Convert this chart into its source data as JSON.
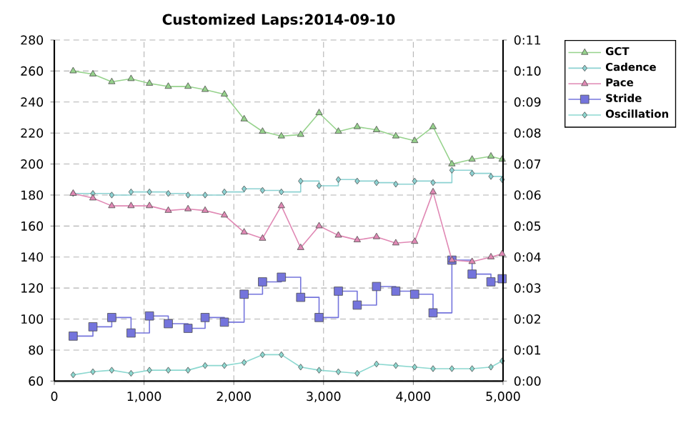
{
  "chart_data": {
    "type": "line",
    "title": "Customized Laps:2014-09-10",
    "x": [
      210,
      430,
      640,
      855,
      1060,
      1270,
      1490,
      1680,
      1895,
      2115,
      2320,
      2530,
      2745,
      2950,
      3165,
      3375,
      3590,
      3805,
      4015,
      4220,
      4430,
      4655,
      4865,
      4990
    ],
    "series": [
      {
        "name": "GCT",
        "color": "#96d28c",
        "marker": "triangle",
        "values": [
          260,
          258,
          253,
          255,
          252,
          250,
          250,
          248,
          245,
          229,
          221,
          218,
          219,
          233,
          221,
          224,
          222,
          218,
          215,
          224,
          200,
          203,
          205,
          203
        ]
      },
      {
        "name": "Cadence",
        "type": "step",
        "color": "#8cd2d2",
        "marker": "diamond",
        "values": [
          181,
          181,
          180,
          182,
          182,
          181,
          180,
          180,
          182,
          184,
          183,
          182,
          189,
          186,
          190,
          189,
          188,
          187,
          189,
          188,
          196,
          194,
          192,
          190
        ]
      },
      {
        "name": "Pace",
        "axis": "y2",
        "color": "#e088b4",
        "marker": "triangle",
        "values": [
          6.05,
          5.9,
          5.65,
          5.65,
          5.65,
          5.5,
          5.55,
          5.5,
          5.35,
          4.8,
          4.6,
          5.65,
          4.3,
          5.0,
          4.7,
          4.55,
          4.65,
          4.45,
          4.5,
          6.1,
          3.9,
          3.85,
          4.0,
          4.1
        ]
      },
      {
        "name": "Stride",
        "type": "step",
        "color": "#7474dc",
        "marker": "square",
        "values": [
          89,
          95,
          101,
          91,
          102,
          97,
          94,
          101,
          98,
          116,
          124,
          127,
          114,
          101,
          118,
          109,
          121,
          118,
          116,
          104,
          138,
          129,
          124,
          126
        ]
      },
      {
        "name": "Oscillation",
        "color": "#8cd8d0",
        "marker": "diamond",
        "values": [
          64,
          66,
          67,
          65,
          67,
          67,
          67,
          70,
          70,
          72,
          77,
          77,
          69,
          67,
          66,
          65,
          71,
          70,
          69,
          68,
          68,
          68,
          69,
          73
        ]
      }
    ],
    "xlim": [
      0,
      5000
    ],
    "xticks": [
      0,
      {
        "value": 1000,
        "label": "1,000"
      },
      {
        "value": 2000,
        "label": "2,000"
      },
      {
        "value": 3000,
        "label": "3,000"
      },
      {
        "value": 4000,
        "label": "4,000"
      },
      {
        "value": 5000,
        "label": "5,000"
      }
    ],
    "ylim": [
      60,
      280
    ],
    "yticks": [
      60,
      80,
      100,
      120,
      140,
      160,
      180,
      200,
      220,
      240,
      260,
      280
    ],
    "y2lim": [
      0,
      11
    ],
    "y2ticks": [
      {
        "value": 0,
        "label": "0:00"
      },
      {
        "value": 1,
        "label": "0:01"
      },
      {
        "value": 2,
        "label": "0:02"
      },
      {
        "value": 3,
        "label": "0:03"
      },
      {
        "value": 4,
        "label": "0:04"
      },
      {
        "value": 5,
        "label": "0:05"
      },
      {
        "value": 6,
        "label": "0:06"
      },
      {
        "value": 7,
        "label": "0:07"
      },
      {
        "value": 8,
        "label": "0:08"
      },
      {
        "value": 9,
        "label": "0:09"
      },
      {
        "value": 10,
        "label": "0:10"
      },
      {
        "value": 11,
        "label": "0:11"
      }
    ],
    "grid": true,
    "legend": "right"
  }
}
